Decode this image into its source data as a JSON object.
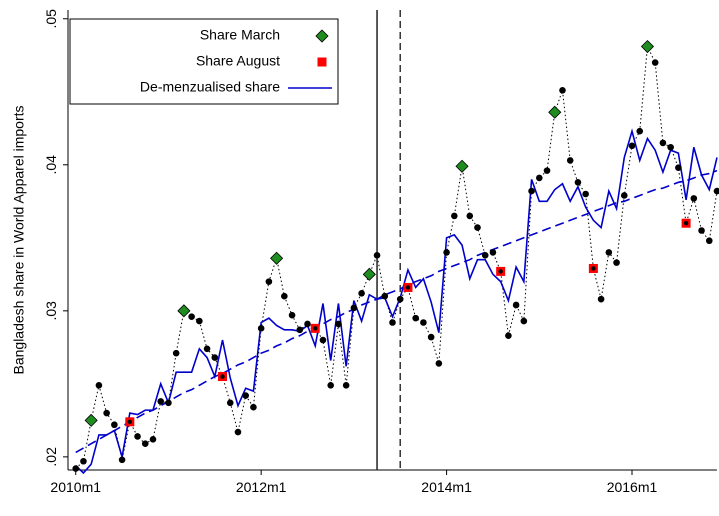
{
  "chart_data": {
    "type": "line",
    "ylabel": "Bangladesh share in World Apparel imports",
    "x": [
      600,
      601,
      602,
      603,
      604,
      605,
      606,
      607,
      608,
      609,
      610,
      611,
      612,
      613,
      614,
      615,
      616,
      617,
      618,
      619,
      620,
      621,
      622,
      623,
      624,
      625,
      626,
      627,
      628,
      629,
      630,
      631,
      632,
      633,
      634,
      635,
      636,
      637,
      638,
      639,
      640,
      641,
      642,
      643,
      644,
      645,
      646,
      647,
      648,
      649,
      650,
      651,
      652,
      653,
      654,
      655,
      656,
      657,
      658,
      659,
      660,
      661,
      662,
      663,
      664,
      665,
      666,
      667,
      668,
      669,
      670,
      671,
      672,
      673,
      674,
      675,
      676,
      677,
      678,
      679,
      680,
      681,
      682,
      683
    ],
    "xlim": [
      599,
      683
    ],
    "xticks": [
      {
        "value": 600,
        "label": "2010m1"
      },
      {
        "value": 624,
        "label": "2012m1"
      },
      {
        "value": 648,
        "label": "2014m1"
      },
      {
        "value": 672,
        "label": "2016m1"
      }
    ],
    "ylim": [
      0.0191,
      0.0506
    ],
    "yticks": [
      {
        "value": 0.02,
        "label": ".02"
      },
      {
        "value": 0.03,
        "label": ".03"
      },
      {
        "value": 0.04,
        "label": ".04"
      },
      {
        "value": 0.05,
        "label": ".05"
      }
    ],
    "xlines": [
      {
        "value": 639,
        "style": "solid"
      },
      {
        "value": 642,
        "style": "dashed"
      }
    ],
    "legend": "top-left",
    "series": [
      {
        "color": "#000000",
        "marker": "circle",
        "line": "dotted",
        "values": [
          0.0192,
          0.0197,
          0.0225,
          0.0249,
          0.023,
          0.0222,
          0.0198,
          0.0224,
          0.0214,
          0.0209,
          0.0212,
          0.0238,
          0.0237,
          0.0271,
          0.03,
          0.0296,
          0.0293,
          0.0274,
          0.0268,
          0.0255,
          0.0237,
          0.0217,
          0.0242,
          0.0234,
          0.0288,
          0.032,
          0.0336,
          0.031,
          0.0297,
          0.0287,
          0.0291,
          0.0288,
          0.028,
          0.0249,
          0.0291,
          0.0249,
          0.0302,
          0.0312,
          0.0325,
          0.0338,
          0.031,
          0.0292,
          0.0308,
          0.0316,
          0.0295,
          0.0292,
          0.0282,
          0.0264,
          0.034,
          0.0365,
          0.0399,
          0.0365,
          0.0357,
          0.0338,
          0.034,
          0.0327,
          0.0283,
          0.0304,
          0.0293,
          0.0382,
          0.0391,
          0.0396,
          0.0436,
          0.0451,
          0.0403,
          0.0388,
          0.038,
          0.0329,
          0.0308,
          0.034,
          0.0333,
          0.0379,
          0.0413,
          0.0423,
          0.0481,
          0.047,
          0.0415,
          0.0412,
          0.0398,
          0.036,
          0.0377,
          0.0355,
          0.0348,
          0.0382
        ]
      },
      {
        "name": "Share March",
        "color": "#1e8c1e",
        "marker": "diamond",
        "values": [
          null,
          null,
          0.0225,
          null,
          null,
          null,
          null,
          null,
          null,
          null,
          null,
          null,
          null,
          null,
          0.03,
          null,
          null,
          null,
          null,
          null,
          null,
          null,
          null,
          null,
          null,
          null,
          0.0336,
          null,
          null,
          null,
          null,
          null,
          null,
          null,
          null,
          null,
          null,
          null,
          0.0325,
          null,
          null,
          null,
          null,
          null,
          null,
          null,
          null,
          null,
          null,
          null,
          0.0399,
          null,
          null,
          null,
          null,
          null,
          null,
          null,
          null,
          null,
          null,
          null,
          0.0436,
          null,
          null,
          null,
          null,
          null,
          null,
          null,
          null,
          null,
          null,
          null,
          0.0481,
          null,
          null,
          null,
          null,
          null,
          null,
          null,
          null,
          null
        ]
      },
      {
        "name": "Share August",
        "color": "#ff0000",
        "marker": "square",
        "values": [
          null,
          null,
          null,
          null,
          null,
          null,
          null,
          0.0224,
          null,
          null,
          null,
          null,
          null,
          null,
          null,
          null,
          null,
          null,
          null,
          0.0255,
          null,
          null,
          null,
          null,
          null,
          null,
          null,
          null,
          null,
          null,
          null,
          0.0288,
          null,
          null,
          null,
          null,
          null,
          null,
          null,
          null,
          null,
          null,
          null,
          0.0316,
          null,
          null,
          null,
          null,
          null,
          null,
          null,
          null,
          null,
          null,
          null,
          0.0327,
          null,
          null,
          null,
          null,
          null,
          null,
          null,
          null,
          null,
          null,
          null,
          0.0329,
          null,
          null,
          null,
          null,
          null,
          null,
          null,
          null,
          null,
          null,
          null,
          0.036,
          null,
          null,
          null,
          null
        ]
      },
      {
        "name": "De-menzualised share",
        "color": "#0000cc",
        "line": "solid",
        "values": [
          0.0194,
          0.0189,
          0.0195,
          0.0215,
          0.0215,
          0.0218,
          0.02,
          0.023,
          0.0229,
          0.0232,
          0.0232,
          0.025,
          0.0237,
          0.0258,
          0.0258,
          0.0258,
          0.0274,
          0.0268,
          0.0255,
          0.028,
          0.0254,
          0.0235,
          0.0247,
          0.0245,
          0.0292,
          0.0295,
          0.029,
          0.0287,
          0.0287,
          0.0286,
          0.029,
          0.0276,
          0.0305,
          0.0266,
          0.0305,
          0.0262,
          0.0307,
          0.0293,
          0.0311,
          0.0308,
          0.0309,
          0.0296,
          0.0309,
          0.0328,
          0.0316,
          0.0322,
          0.0306,
          0.0285,
          0.035,
          0.0352,
          0.0345,
          0.0322,
          0.0335,
          0.0335,
          0.0325,
          0.032,
          0.0307,
          0.033,
          0.032,
          0.039,
          0.0375,
          0.0375,
          0.0383,
          0.0387,
          0.0375,
          0.0385,
          0.0371,
          0.0362,
          0.0357,
          0.0382,
          0.037,
          0.0405,
          0.0423,
          0.0403,
          0.0418,
          0.041,
          0.0395,
          0.041,
          0.0408,
          0.0376,
          0.0412,
          0.0393,
          0.0383,
          0.0405
        ]
      },
      {
        "color": "#0000cc",
        "line": "dashed",
        "values": [
          0.0203,
          0.0206,
          0.0209,
          0.0212,
          0.0215,
          0.0218,
          0.0221,
          0.0224,
          0.0227,
          0.023,
          0.0232,
          0.0235,
          0.0238,
          0.0241,
          0.0244,
          0.0246,
          0.0249,
          0.0252,
          0.0255,
          0.0257,
          0.026,
          0.0263,
          0.0265,
          0.0268,
          0.0271,
          0.0273,
          0.0276,
          0.0278,
          0.0281,
          0.0283,
          0.0286,
          0.0289,
          0.0291,
          0.0294,
          0.0296,
          0.0299,
          0.0301,
          0.0304,
          0.0306,
          0.0308,
          0.0311,
          0.0313,
          0.0315,
          0.0318,
          0.032,
          0.0322,
          0.0324,
          0.0327,
          0.0329,
          0.0331,
          0.0333,
          0.0335,
          0.0338,
          0.034,
          0.0342,
          0.0344,
          0.0346,
          0.0348,
          0.035,
          0.0352,
          0.0354,
          0.0356,
          0.0358,
          0.036,
          0.0362,
          0.0364,
          0.0366,
          0.0368,
          0.037,
          0.0372,
          0.0374,
          0.0375,
          0.0377,
          0.0379,
          0.0381,
          0.0383,
          0.0384,
          0.0386,
          0.0388,
          0.0389,
          0.0391,
          0.0393,
          0.0394,
          0.0396
        ]
      }
    ]
  }
}
